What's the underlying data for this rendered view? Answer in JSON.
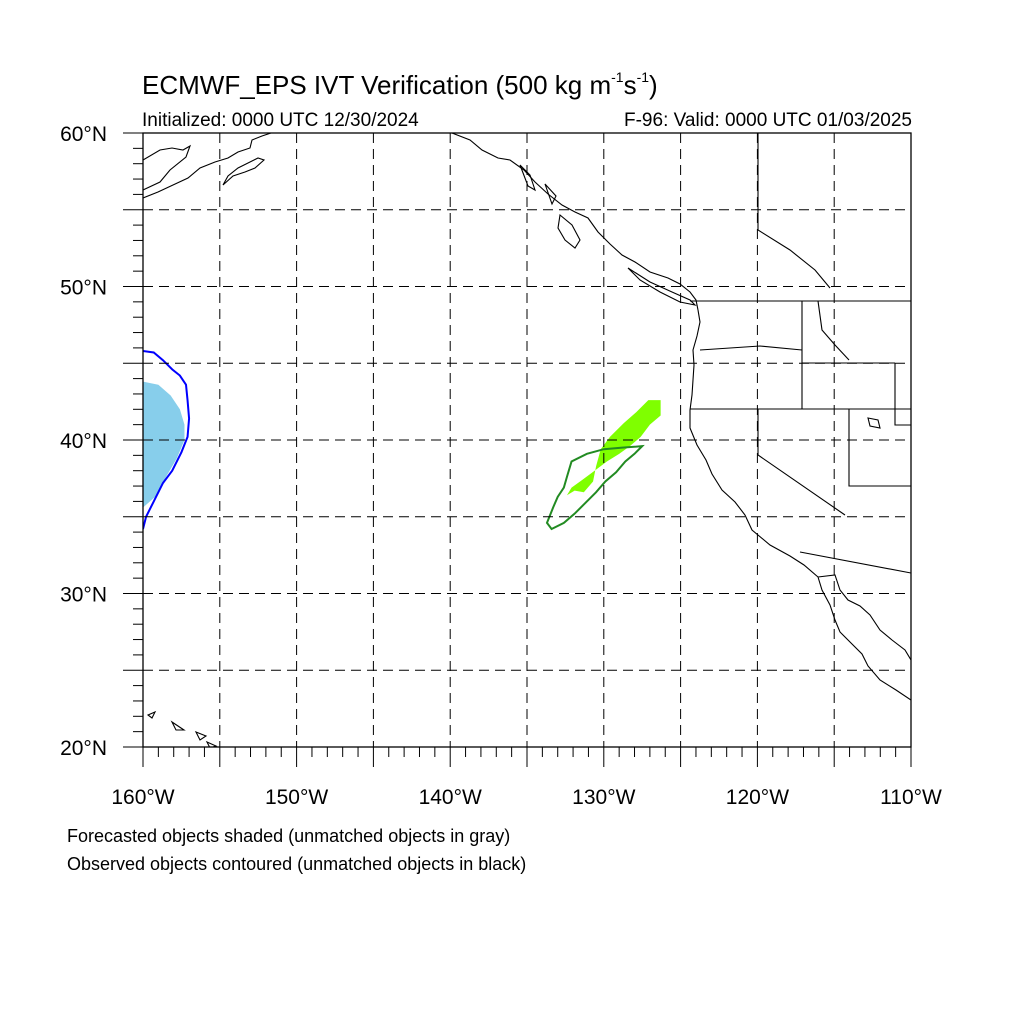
{
  "title": {
    "prefix": "ECMWF_EPS IVT Verification (500 kg m",
    "exp1": "-1",
    "mid": "s",
    "exp2": "-1",
    "suffix": ")"
  },
  "initialized": "Initialized: 0000 UTC 12/30/2024",
  "valid": "F-96: Valid: 0000 UTC 01/03/2025",
  "notes": {
    "forecast": "Forecasted objects shaded (unmatched objects in gray)",
    "observed": "Observed objects contoured (unmatched objects in black)"
  },
  "map": {
    "lon_range": [
      -160,
      -110
    ],
    "lat_range": [
      20,
      60
    ],
    "grid_step_deg": 5,
    "x_tick_labels": [
      {
        "lon": -160,
        "label": "160°W"
      },
      {
        "lon": -150,
        "label": "150°W"
      },
      {
        "lon": -140,
        "label": "140°W"
      },
      {
        "lon": -130,
        "label": "130°W"
      },
      {
        "lon": -120,
        "label": "120°W"
      },
      {
        "lon": -110,
        "label": "110°W"
      }
    ],
    "y_tick_labels": [
      {
        "lat": 60,
        "label": "60°N"
      },
      {
        "lat": 50,
        "label": "50°N"
      },
      {
        "lat": 40,
        "label": "40°N"
      },
      {
        "lat": 30,
        "label": "30°N"
      },
      {
        "lat": 20,
        "label": "20°N"
      }
    ],
    "colors": {
      "grid": "#000000",
      "coast": "#000000",
      "object1_fill": "#87ceeb",
      "object1_contour": "#0000ff",
      "object2_fill": "#7fff00",
      "object2_contour": "#228b22"
    },
    "objects": [
      {
        "name": "west-edge-object",
        "forecast_fill": [
          [
            -160,
            43.8
          ],
          [
            -159,
            43.6
          ],
          [
            -158.2,
            42.9
          ],
          [
            -157.6,
            42.0
          ],
          [
            -157.3,
            41.0
          ],
          [
            -157.3,
            40.0
          ],
          [
            -157.8,
            38.8
          ],
          [
            -158.5,
            37.6
          ],
          [
            -159.2,
            36.3
          ],
          [
            -160,
            35.6
          ]
        ],
        "observed_contour": [
          [
            -160,
            45.8
          ],
          [
            -159.3,
            45.7
          ],
          [
            -158.7,
            45.2
          ],
          [
            -158.1,
            44.6
          ],
          [
            -157.6,
            44.2
          ],
          [
            -157.2,
            43.6
          ],
          [
            -157.1,
            42.6
          ],
          [
            -157.0,
            41.4
          ],
          [
            -157.1,
            40.2
          ],
          [
            -157.5,
            39.2
          ],
          [
            -158.1,
            38.0
          ],
          [
            -158.7,
            37.2
          ],
          [
            -159.3,
            36.0
          ],
          [
            -159.8,
            35.0
          ],
          [
            -160,
            34.2
          ]
        ]
      },
      {
        "name": "offshore-object",
        "forecast_fill": [
          [
            -126.3,
            42.6
          ],
          [
            -126.3,
            41.6
          ],
          [
            -127.0,
            41.0
          ],
          [
            -127.6,
            40.2
          ],
          [
            -128.3,
            39.6
          ],
          [
            -129.0,
            39.1
          ],
          [
            -129.8,
            38.6
          ],
          [
            -130.6,
            38.0
          ],
          [
            -131.4,
            37.4
          ],
          [
            -132.1,
            36.9
          ],
          [
            -132.4,
            36.4
          ],
          [
            -131.9,
            36.7
          ],
          [
            -131.3,
            36.6
          ],
          [
            -130.7,
            37.3
          ],
          [
            -130.5,
            38.3
          ],
          [
            -130.2,
            39.4
          ],
          [
            -129.6,
            40.2
          ],
          [
            -128.7,
            41.1
          ],
          [
            -127.9,
            41.8
          ],
          [
            -127.1,
            42.6
          ]
        ],
        "observed_contour": [
          [
            -127.5,
            39.6
          ],
          [
            -128.0,
            39.1
          ],
          [
            -128.6,
            38.6
          ],
          [
            -129.2,
            37.9
          ],
          [
            -129.9,
            37.3
          ],
          [
            -130.5,
            36.6
          ],
          [
            -131.2,
            35.9
          ],
          [
            -131.9,
            35.2
          ],
          [
            -132.6,
            34.6
          ],
          [
            -133.4,
            34.2
          ],
          [
            -133.7,
            34.6
          ],
          [
            -133.3,
            35.6
          ],
          [
            -133.0,
            36.3
          ],
          [
            -132.6,
            36.9
          ],
          [
            -132.4,
            37.6
          ],
          [
            -132.1,
            38.6
          ],
          [
            -131.1,
            39.1
          ],
          [
            -130.0,
            39.4
          ],
          [
            -128.8,
            39.5
          ]
        ]
      }
    ],
    "borders_desc": "coastlines, US state and Canada/Mexico borders"
  }
}
